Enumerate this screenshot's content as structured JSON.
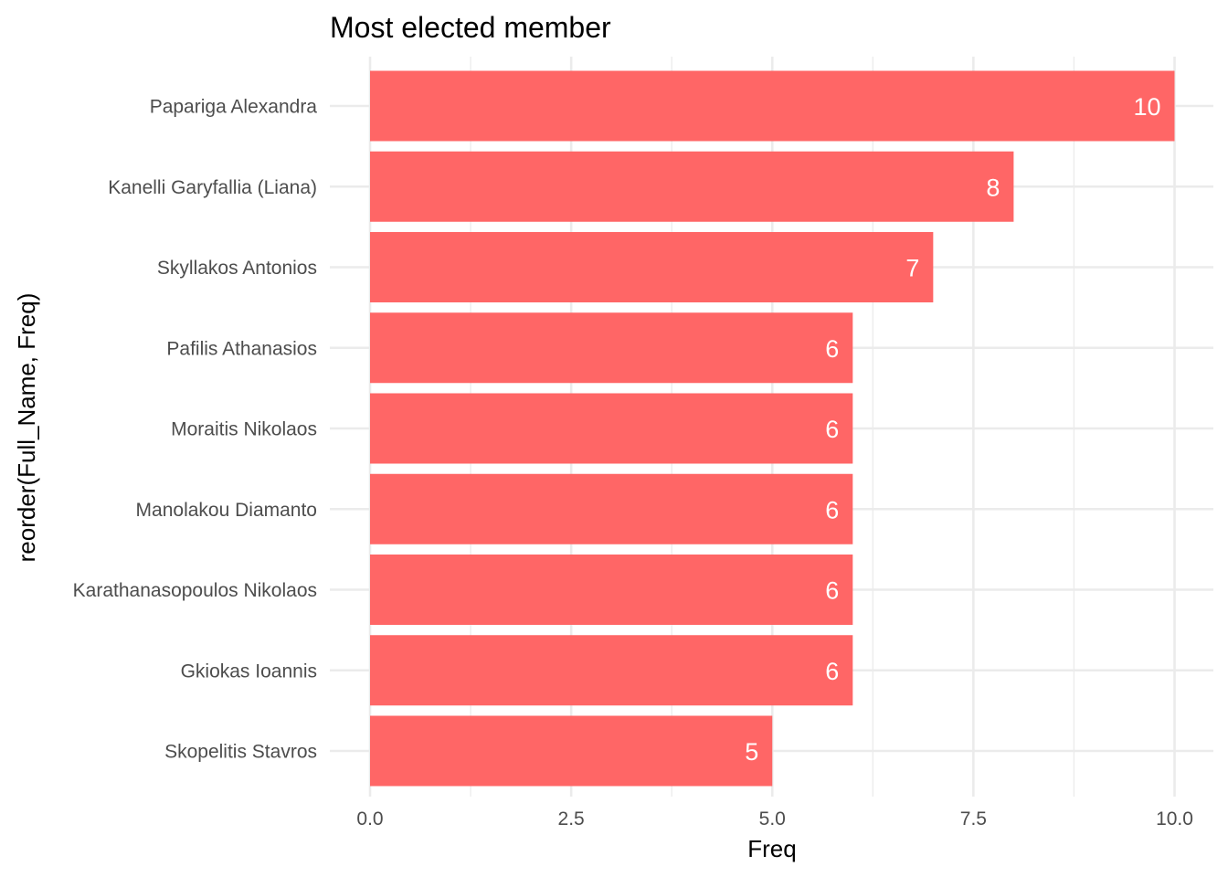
{
  "chart_data": {
    "type": "bar",
    "orientation": "horizontal",
    "title": "Most elected member",
    "xlabel": "Freq",
    "ylabel": "reorder(Full_Name, Freq)",
    "categories": [
      "Papariga Alexandra",
      "Kanelli Garyfallia (Liana)",
      "Skyllakos Antonios",
      "Pafilis Athanasios",
      "Moraitis Nikolaos",
      "Manolakou Diamanto",
      "Karathanasopoulos Nikolaos",
      "Gkiokas Ioannis",
      "Skopelitis Stavros"
    ],
    "values": [
      10,
      8,
      7,
      6,
      6,
      6,
      6,
      6,
      5
    ],
    "data_labels": [
      "10",
      "8",
      "7",
      "6",
      "6",
      "6",
      "6",
      "6",
      "5"
    ],
    "xlim": [
      0,
      10
    ],
    "x_ticks": [
      0,
      2.5,
      5,
      7.5,
      10
    ],
    "x_tick_labels": [
      "0.0",
      "2.5",
      "5.0",
      "7.5",
      "10.0"
    ],
    "grid": true,
    "legend": "none",
    "colors": {
      "bar": "#ff6666",
      "grid": "#ebebeb",
      "tick_text": "#4d4d4d",
      "data_label": "#ffffff"
    }
  }
}
